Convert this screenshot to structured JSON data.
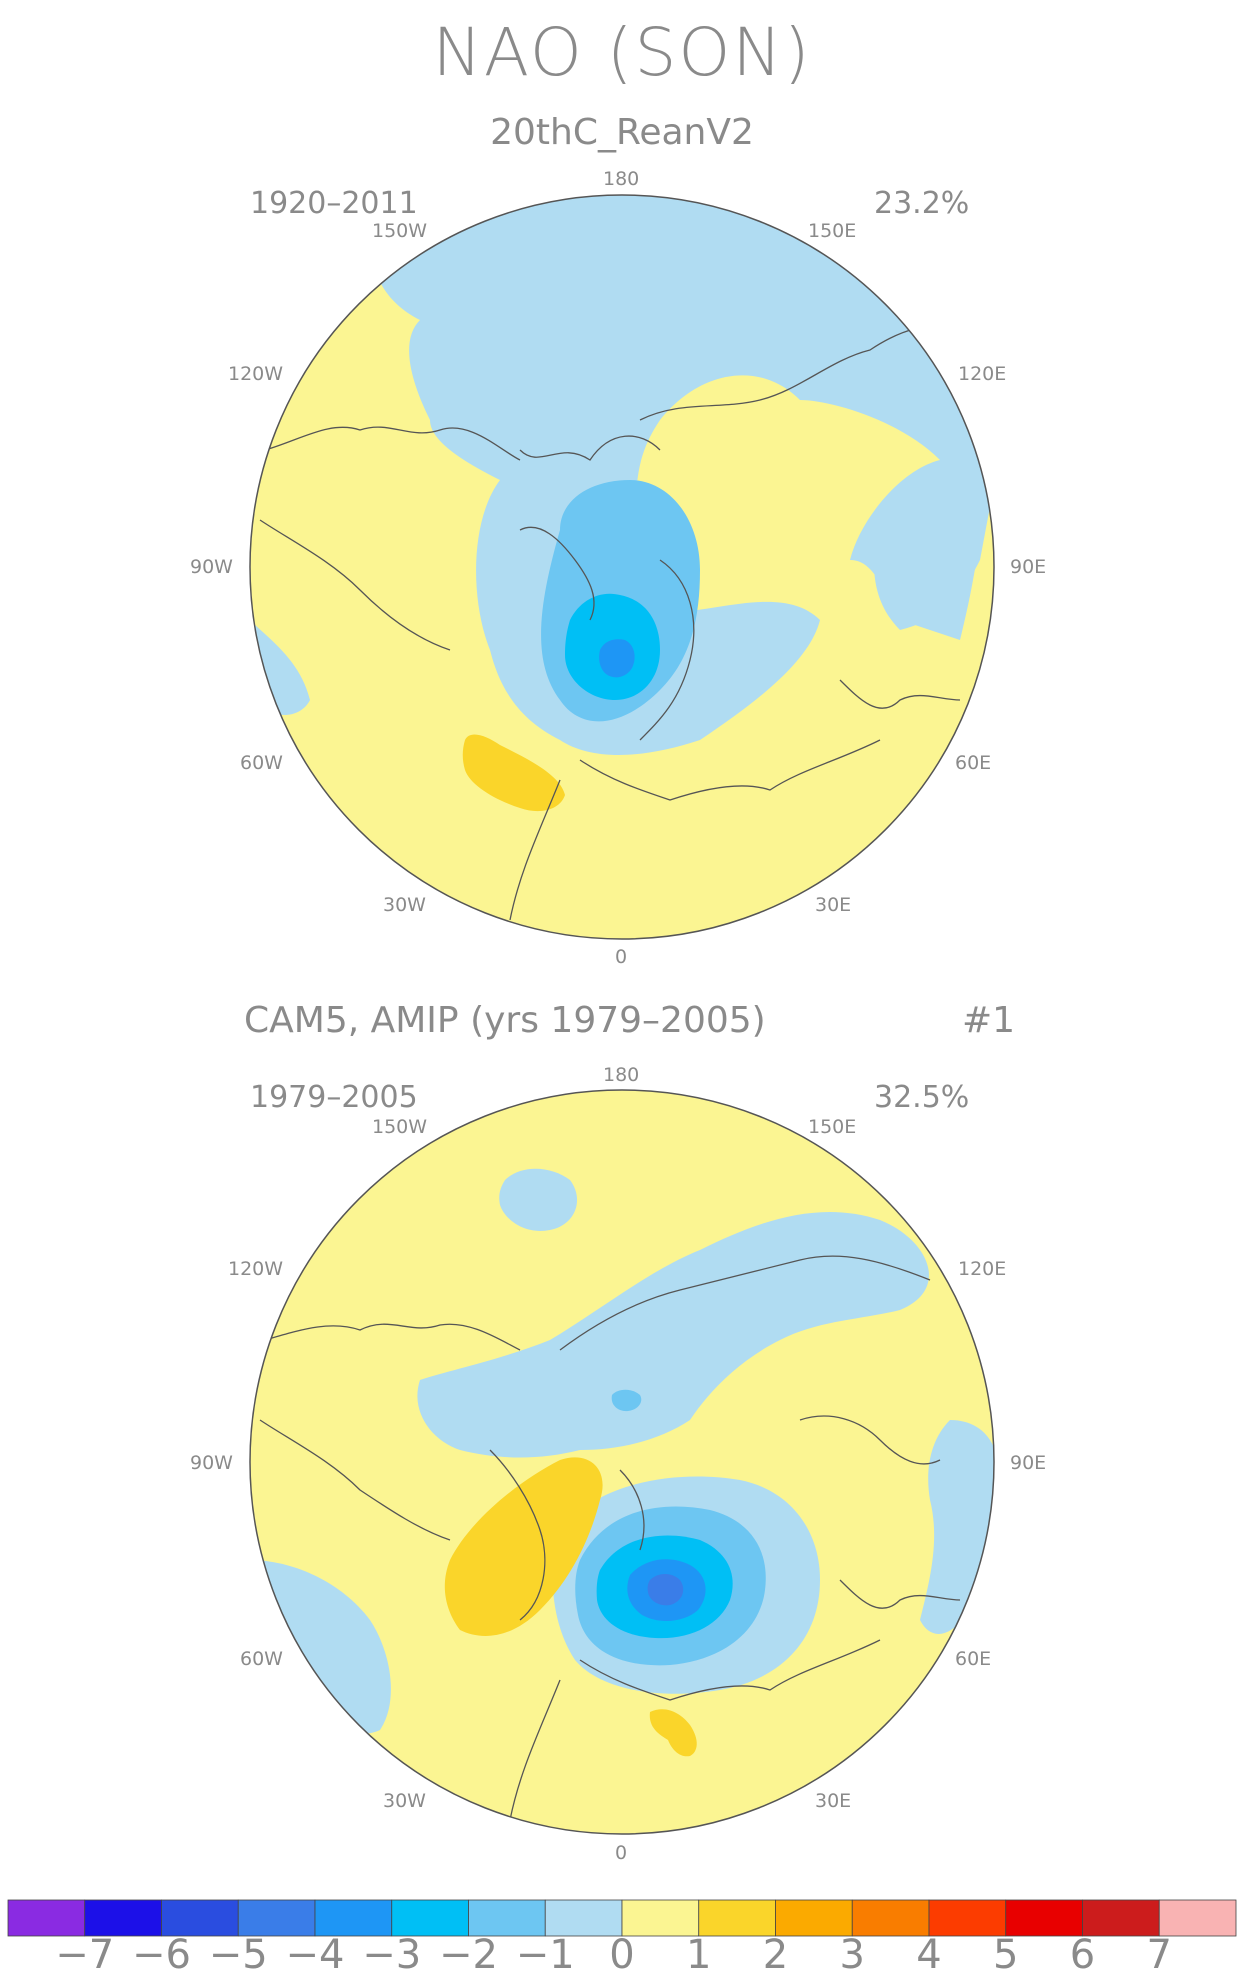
{
  "title": "NAO (SON)",
  "panels": [
    {
      "id": "reanalysis",
      "subtitle": "20thC_ReanV2",
      "extra": "",
      "years": "1920–2011",
      "variance": "23.2%"
    },
    {
      "id": "cam5",
      "subtitle": "CAM5, AMIP (yrs 1979–2005)",
      "extra": "#1",
      "years": "1979–2005",
      "variance": "32.5%"
    }
  ],
  "longitudes": {
    "top": "180",
    "nw1": "150W",
    "ne1": "150E",
    "nw2": "120W",
    "ne2": "120E",
    "w": "90W",
    "e": "90E",
    "sw2": "60W",
    "se2": "60E",
    "sw1": "30W",
    "se1": "30E",
    "bottom": "0"
  },
  "colorbar": {
    "colors": [
      "#8a2be2",
      "#1c10e8",
      "#2a4de0",
      "#3a7de8",
      "#1e96f5",
      "#00bff5",
      "#6dc6f2",
      "#b0dcf2",
      "#fbf592",
      "#fad52a",
      "#fbaa00",
      "#f97d00",
      "#fc3c00",
      "#e80000",
      "#cc1c1c",
      "#f9b3b3"
    ],
    "labels": [
      "−7",
      "−6",
      "−5",
      "−4",
      "−3",
      "−2",
      "−1",
      "0",
      "1",
      "2",
      "3",
      "4",
      "5",
      "6",
      "7"
    ]
  }
}
